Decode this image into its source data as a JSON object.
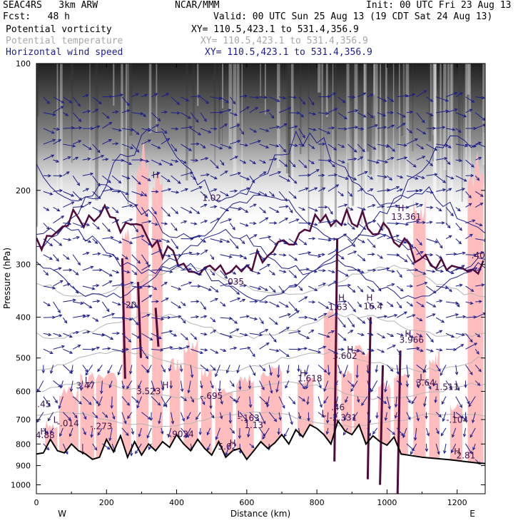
{
  "header": {
    "model": "SEAC4RS   3km ARW",
    "forecast": "Fcst:   48 h",
    "org": "NCAR/MMM",
    "init": "Init: 00 UTC Fri 23 Aug 13",
    "valid": "Valid: 00 UTC Sun 25 Aug 13 (19 CDT Sat 24 Aug 13)",
    "fields": [
      {
        "name": "Potential vorticity",
        "xy": "XY= 110.5,423.1 to 531.4,356.9"
      },
      {
        "name": "Potential temperature",
        "xy": "XY= 110.5,423.1 to 531.4,356.9"
      },
      {
        "name": "Horizontal wind speed",
        "xy": "XY= 110.5,423.1 to 531.4,356.9"
      }
    ]
  },
  "chart_data": {
    "type": "cross-section",
    "xlabel": "Distance (km)",
    "ylabel": "Pressure (hPa)",
    "xlim": [
      0,
      1280
    ],
    "ylim": [
      1050,
      100
    ],
    "yscale": "log",
    "xticks": [
      "0",
      "200",
      "400",
      "600",
      "800",
      "1000",
      "1200"
    ],
    "yticks": [
      "100",
      "200",
      "300",
      "400",
      "500",
      "600",
      "700",
      "800",
      "900",
      "1000"
    ],
    "x_end_labels": {
      "left": "W",
      "right": "E"
    },
    "colors": {
      "pv_shading": "#ffb9b9",
      "pv_contour": "#500a3c",
      "theta_contour": "#b4b4b4",
      "wind_contour": "#1e1e8c",
      "terrain": "#000000"
    },
    "terrain": {
      "x": [
        0,
        20,
        40,
        60,
        80,
        100,
        120,
        140,
        160,
        180,
        200,
        220,
        240,
        260,
        280,
        300,
        320,
        340,
        360,
        380,
        400,
        420,
        440,
        460,
        480,
        500,
        520,
        540,
        560,
        580,
        600,
        620,
        640,
        660,
        680,
        700,
        720,
        740,
        760,
        780,
        800,
        820,
        840,
        860,
        880,
        900,
        920,
        940,
        960,
        980,
        1000,
        1020,
        1040,
        1060,
        1080,
        1100,
        1120,
        1140,
        1160,
        1180,
        1200,
        1220,
        1240,
        1260,
        1280
      ],
      "p": [
        845,
        840,
        780,
        830,
        840,
        800,
        830,
        845,
        870,
        860,
        780,
        835,
        765,
        860,
        790,
        850,
        800,
        830,
        790,
        815,
        760,
        800,
        830,
        780,
        820,
        850,
        790,
        860,
        830,
        820,
        870,
        830,
        790,
        820,
        795,
        760,
        800,
        740,
        770,
        720,
        735,
        760,
        800,
        705,
        745,
        760,
        720,
        800,
        765,
        790,
        805,
        770,
        845,
        850,
        855,
        860,
        863,
        866,
        869,
        872,
        876,
        880,
        884,
        888,
        890
      ]
    },
    "isobaric_labels": [
      {
        "x": 140,
        "p": 591,
        "text": "3.47"
      },
      {
        "x": 22,
        "p": 654,
        "text": ".45"
      },
      {
        "x": 90,
        "p": 726,
        "text": "-.014"
      },
      {
        "x": 25,
        "p": 775,
        "text": "4.88"
      },
      {
        "x": 185,
        "p": 738,
        "text": "-.273"
      },
      {
        "x": 320,
        "p": 610,
        "text": "3.523"
      },
      {
        "x": 410,
        "p": 770,
        "text": "-.9024"
      },
      {
        "x": 500,
        "p": 625,
        "text": "-.695"
      },
      {
        "x": 605,
        "p": 705,
        "text": "-.163"
      },
      {
        "x": 620,
        "p": 734,
        "text": "1.13"
      },
      {
        "x": 545,
        "p": 825,
        "text": "5.62"
      },
      {
        "x": 780,
        "p": 568,
        "text": "1.618"
      },
      {
        "x": 880,
        "p": 502,
        "text": "3.602"
      },
      {
        "x": 860,
        "p": 385,
        "text": "1.63"
      },
      {
        "x": 960,
        "p": 383,
        "text": "16.4"
      },
      {
        "x": 1070,
        "p": 460,
        "text": "3.966"
      },
      {
        "x": 1110,
        "p": 582,
        "text": "3.64"
      },
      {
        "x": 1170,
        "p": 595,
        "text": "1.511"
      },
      {
        "x": 875,
        "p": 704,
        "text": "-2.331"
      },
      {
        "x": 860,
        "p": 665,
        "text": ".46"
      },
      {
        "x": 1200,
        "p": 712,
        "text": "-.104"
      },
      {
        "x": 1225,
        "p": 865,
        "text": "2.81"
      },
      {
        "x": 1055,
        "p": 235,
        "text": "13.361"
      },
      {
        "x": 1260,
        "p": 290,
        "text": ".40"
      },
      {
        "x": 565,
        "p": 335,
        "text": ".035"
      },
      {
        "x": 270,
        "p": 380,
        "text": "20"
      },
      {
        "x": 500,
        "p": 212,
        "text": "1.02"
      }
    ],
    "extrema": [
      {
        "x": 145,
        "p": 574,
        "type": "L"
      },
      {
        "x": 55,
        "p": 712,
        "type": "L"
      },
      {
        "x": 20,
        "p": 760,
        "type": "H"
      },
      {
        "x": 368,
        "p": 590,
        "type": "H"
      },
      {
        "x": 580,
        "p": 690,
        "type": "L"
      },
      {
        "x": 560,
        "p": 808,
        "type": "H"
      },
      {
        "x": 760,
        "p": 553,
        "type": "H"
      },
      {
        "x": 895,
        "p": 485,
        "type": "H"
      },
      {
        "x": 870,
        "p": 366,
        "type": "H"
      },
      {
        "x": 950,
        "p": 366,
        "type": "H"
      },
      {
        "x": 1060,
        "p": 445,
        "type": "H"
      },
      {
        "x": 1100,
        "p": 565,
        "type": "L"
      },
      {
        "x": 820,
        "p": 688,
        "type": "L"
      },
      {
        "x": 1195,
        "p": 695,
        "type": "L"
      },
      {
        "x": 1200,
        "p": 848,
        "type": "H"
      },
      {
        "x": 1040,
        "p": 224,
        "type": "H"
      },
      {
        "x": 340,
        "p": 187,
        "type": "H"
      }
    ]
  }
}
